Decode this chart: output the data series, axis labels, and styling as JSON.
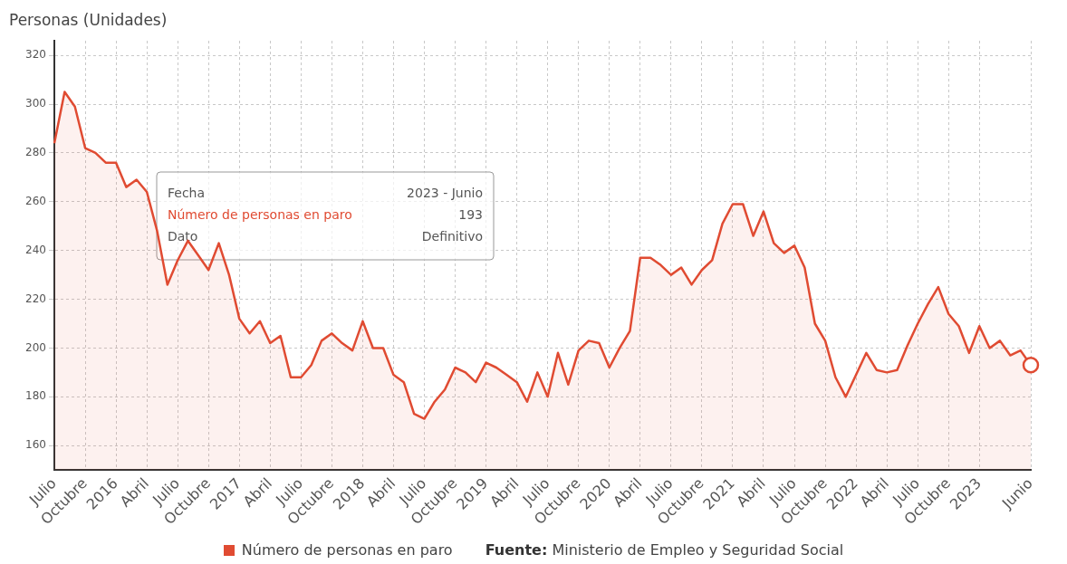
{
  "chart_data": {
    "type": "area",
    "ylabel": "Personas (Unidades)",
    "categories": [
      "Julio",
      null,
      null,
      "Octubre",
      null,
      null,
      "2016",
      null,
      null,
      "Abril",
      null,
      null,
      "Julio",
      null,
      null,
      "Octubre",
      null,
      null,
      "2017",
      null,
      null,
      "Abril",
      null,
      null,
      "Julio",
      null,
      null,
      "Octubre",
      null,
      null,
      "2018",
      null,
      null,
      "Abril",
      null,
      null,
      "Julio",
      null,
      null,
      "Octubre",
      null,
      null,
      "2019",
      null,
      null,
      "Abril",
      null,
      null,
      "Julio",
      null,
      null,
      "Octubre",
      null,
      null,
      "2020",
      null,
      null,
      "Abril",
      null,
      null,
      "Julio",
      null,
      null,
      "Octubre",
      null,
      null,
      "2021",
      null,
      null,
      "Abril",
      null,
      null,
      "Julio",
      null,
      null,
      "Octubre",
      null,
      null,
      "2022",
      null,
      null,
      "Abril",
      null,
      null,
      "Julio",
      null,
      null,
      "Octubre",
      null,
      null,
      "2023",
      null,
      null,
      null,
      null,
      "Junio"
    ],
    "series": [
      {
        "name": "Número de personas en paro",
        "color": "#e04b32",
        "values": [
          284,
          305,
          299,
          282,
          280,
          276,
          276,
          266,
          269,
          264,
          248,
          226,
          236,
          244,
          238,
          232,
          243,
          230,
          212,
          206,
          211,
          202,
          205,
          188,
          188,
          193,
          203,
          206,
          202,
          199,
          211,
          200,
          200,
          189,
          186,
          173,
          171,
          178,
          183,
          192,
          190,
          186,
          194,
          192,
          189,
          186,
          178,
          190,
          180,
          198,
          185,
          199,
          203,
          202,
          192,
          200,
          207,
          237,
          237,
          234,
          230,
          233,
          226,
          232,
          236,
          251,
          259,
          259,
          246,
          256,
          243,
          239,
          242,
          233,
          210,
          203,
          188,
          180,
          189,
          198,
          191,
          190,
          191,
          201,
          210,
          218,
          225,
          214,
          209,
          198,
          209,
          200,
          203,
          197,
          199,
          193
        ]
      }
    ],
    "ylim": [
      150,
      326
    ],
    "yticks": [
      160,
      180,
      200,
      220,
      240,
      260,
      280,
      300,
      320
    ],
    "grid": true,
    "legend": "bottom",
    "annotations": [
      "Fecha",
      "2023 - Junio",
      "Número de personas en paro",
      "193",
      "Dato",
      "Definitivo",
      "Fuente: Ministerio de Empleo y Seguridad Social"
    ]
  }
}
